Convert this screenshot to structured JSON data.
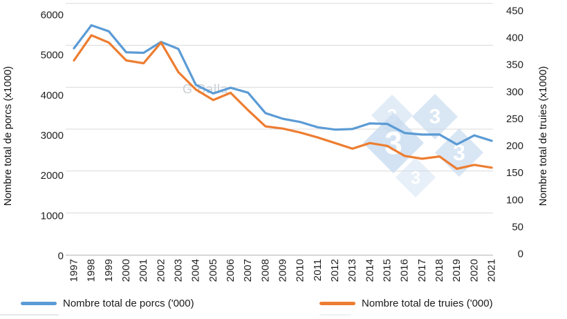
{
  "watermark": {
    "text": "G Balla",
    "logo_digit": "3"
  },
  "colors": {
    "porcs": "#5B9BD5",
    "truies": "#ED7D31",
    "gridline": "#D9D9D9",
    "axis_line": "#BFBFBF",
    "tick_text": "#1F1F1F",
    "watermark_text": "#C9CFD5",
    "watermark_diamond": "#C9DCF0"
  },
  "legend": {
    "items": [
      {
        "label": "Nombre total de porcs ('000)",
        "color": "#5B9BD5"
      },
      {
        "label": "Nombre total de truies ('000)",
        "color": "#ED7D31"
      }
    ]
  },
  "chart_data": {
    "type": "line",
    "x": [
      1997,
      1998,
      1999,
      2000,
      2001,
      2002,
      2003,
      2004,
      2005,
      2006,
      2007,
      2008,
      2009,
      2010,
      2011,
      2012,
      2013,
      2014,
      2015,
      2016,
      2017,
      2018,
      2019,
      2020,
      2021
    ],
    "series": [
      {
        "name": "Nombre total de porcs ('000)",
        "axis": "left",
        "color": "#5B9BD5",
        "values": [
          4931,
          5479,
          5335,
          4834,
          4822,
          5082,
          4913,
          4059,
          3853,
          3987,
          3871,
          3383,
          3247,
          3169,
          3044,
          2989,
          3004,
          3136,
          3124,
          2907,
          2870,
          2872,
          2634,
          2850,
          2721
        ]
      },
      {
        "name": "Nombre total de truies ('000)",
        "axis": "right",
        "color": "#ED7D31",
        "values": [
          348,
          393,
          380,
          348,
          343,
          380,
          327,
          296,
          277,
          290,
          259,
          230,
          226,
          219,
          210,
          200,
          190,
          200,
          195,
          177,
          172,
          176,
          154,
          161,
          156
        ]
      }
    ],
    "left_axis": {
      "title": "Nombre total de porcs (x1000)",
      "min": 0,
      "max": 6000,
      "tick_step": 1000
    },
    "right_axis": {
      "title": "Nombre total de truies (x1000)",
      "min": 0,
      "max": 450,
      "tick_step": 50
    },
    "grid": "horizontal, every 1000 of left axis",
    "legend_position": "bottom"
  }
}
